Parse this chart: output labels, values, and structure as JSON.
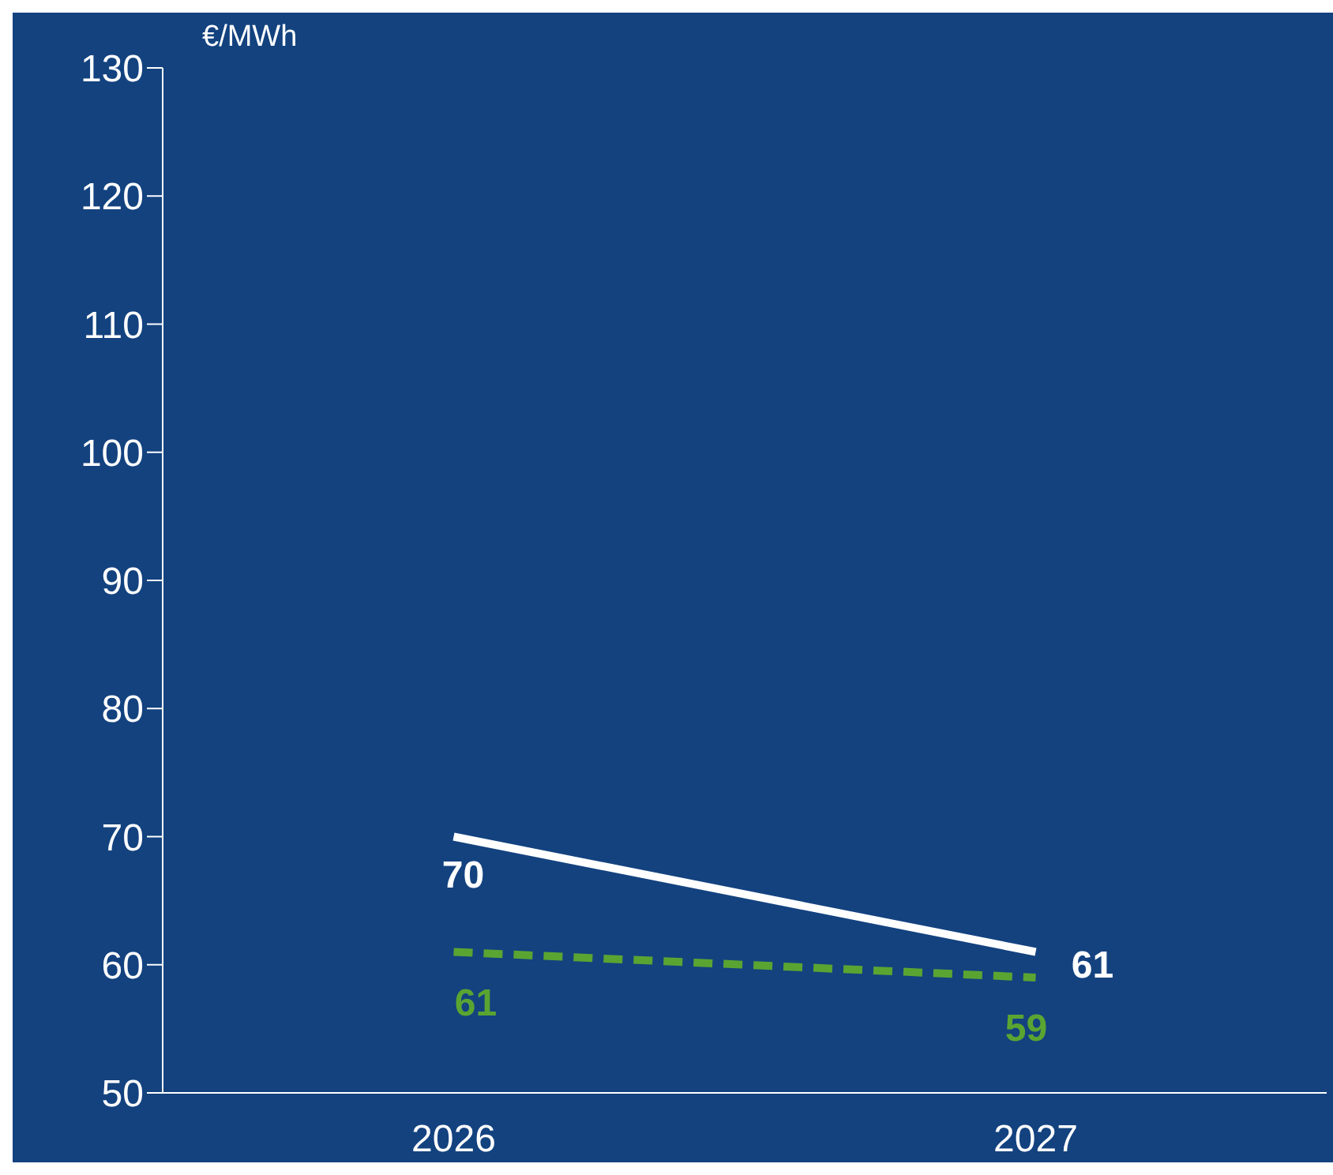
{
  "chart_data": {
    "type": "line",
    "ylabel": "€/MWh",
    "categories": [
      "2026",
      "2027"
    ],
    "series": [
      {
        "color": "#ffffff",
        "values": [
          70,
          61
        ],
        "line_style": "solid"
      },
      {
        "color": "#5aa532",
        "values": [
          61,
          59
        ],
        "line_style": "dashed"
      }
    ],
    "ylim": [
      50,
      130
    ],
    "yticks": [
      50,
      60,
      70,
      80,
      90,
      100,
      110,
      120,
      130
    ],
    "marker": "none",
    "data_labels": true
  }
}
